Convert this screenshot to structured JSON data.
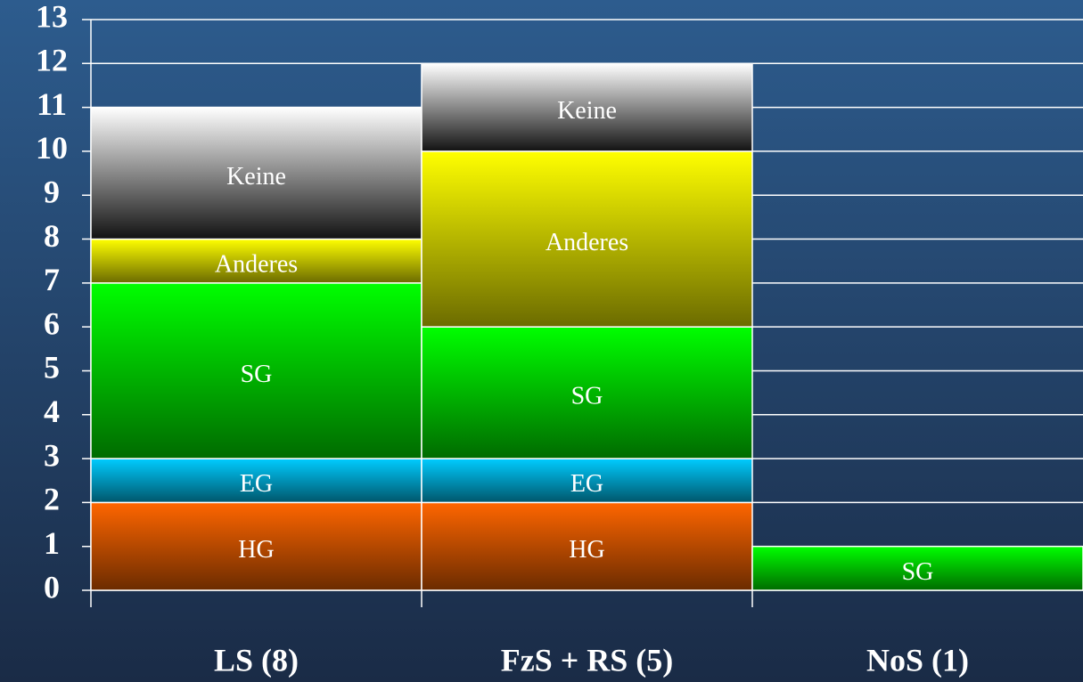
{
  "chart_data": {
    "type": "stacked_bar",
    "categories": [
      "LS (8)",
      "FzS + RS (5)",
      "NoS (1)"
    ],
    "series": [
      {
        "name": "HG",
        "color": "#ff6600",
        "values": [
          2,
          2,
          null
        ]
      },
      {
        "name": "EG",
        "color": "#00ccff",
        "values": [
          1,
          1,
          null
        ]
      },
      {
        "name": "SG",
        "color": "#00ff00",
        "values": [
          4,
          3,
          1
        ]
      },
      {
        "name": "Anderes",
        "color": "#ffff00",
        "values": [
          1,
          4,
          null
        ]
      },
      {
        "name": "Keine",
        "color": "#ffffff",
        "values": [
          3,
          2,
          null
        ]
      }
    ],
    "ylim": [
      0,
      13
    ],
    "yticks": [
      0,
      1,
      2,
      3,
      4,
      5,
      6,
      7,
      8,
      9,
      10,
      11,
      12,
      13
    ],
    "grid": true
  }
}
